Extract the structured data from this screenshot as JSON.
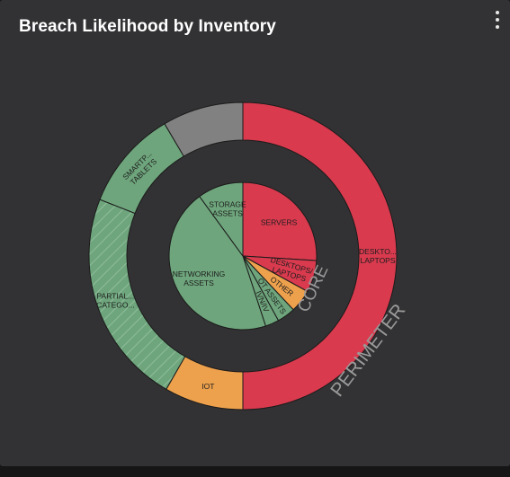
{
  "header": {
    "title": "Breach Likelihood by Inventory"
  },
  "menu": {
    "icon": "more-vert-icon"
  },
  "chart_data": {
    "type": "sunburst-pie",
    "title": "Breach Likelihood by Inventory",
    "colors": {
      "high": "#d93a4e",
      "medium": "#eea14d",
      "low": "#6ea57c",
      "unknown": "#818181",
      "background": "#323234"
    },
    "rings": [
      {
        "name": "CORE",
        "level": "inner",
        "segments": [
          {
            "label": [
              "SERVERS"
            ],
            "value": 26,
            "risk": "high"
          },
          {
            "label": [
              "DESKTOPS/",
              "LAPTOPS"
            ],
            "value": 7,
            "risk": "high"
          },
          {
            "label": [
              "OTHER"
            ],
            "value": 5,
            "risk": "medium"
          },
          {
            "label": [
              "OT ASSETS"
            ],
            "value": 4,
            "risk": "low"
          },
          {
            "label": [
              "IVN/IV"
            ],
            "value": 3,
            "risk": "low"
          },
          {
            "label": [
              "NETWORKING",
              "ASSETS"
            ],
            "value": 45,
            "risk": "low"
          },
          {
            "label": [
              "STORAGE",
              "ASSETS"
            ],
            "value": 10,
            "risk": "low"
          }
        ]
      },
      {
        "name": "PERIMETER",
        "level": "outer",
        "segments": [
          {
            "label": [
              "DESKTO...",
              "LAPTOPS"
            ],
            "value": 50,
            "risk": "high"
          },
          {
            "label": [
              "IOT"
            ],
            "value": 8.3,
            "risk": "medium"
          },
          {
            "label": [
              "PARTIAL...",
              "CATEGO..."
            ],
            "value": 22.7,
            "risk": "low",
            "hatched": true
          },
          {
            "label": [
              "SMARTP...",
              "TABLETS"
            ],
            "value": 10.5,
            "risk": "low"
          },
          {
            "label": [
              ""
            ],
            "value": 8.5,
            "risk": "unknown"
          }
        ]
      }
    ]
  }
}
